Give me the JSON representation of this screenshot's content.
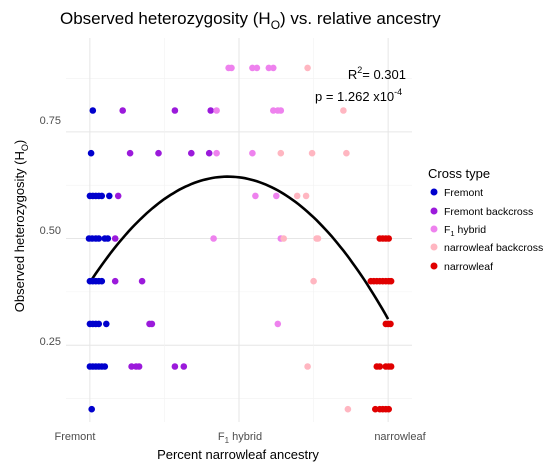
{
  "chart_data": {
    "type": "scatter",
    "title_main": "Observed heterozygosity (H",
    "title_sub": "O",
    "title_end": ") vs. relative ancestry",
    "xlabel": "Percent narrowleaf ancestry",
    "ylabel_main": "Observed heterozygosity (H",
    "ylabel_sub": "O",
    "ylabel_end": ")",
    "x_ticks": [
      {
        "value": 0,
        "label": "Fremont"
      },
      {
        "value": 50,
        "label_main": "F",
        "label_sub": "1",
        "label_end": " hybrid"
      },
      {
        "value": 100,
        "label": "narrowleaf"
      }
    ],
    "xlim": [
      -8,
      108
    ],
    "ylim": [
      0.07,
      0.97
    ],
    "y_ticks": [
      0.25,
      0.5,
      0.75
    ],
    "y_tick_labels": [
      "0.25",
      "0.50",
      "0.75"
    ],
    "grid": true,
    "annotations": {
      "r2_main": "R",
      "r2_sup": "2",
      "r2_value": "= 0.301",
      "p_main": "p = 1.262 x10",
      "p_sup": "-4"
    },
    "legend": {
      "title": "Cross type",
      "placement": "right",
      "entries": [
        {
          "label": "Fremont",
          "color": "#0000CD"
        },
        {
          "label": "Fremont backcross",
          "color": "#9B1ADB"
        },
        {
          "label_main": "F",
          "label_sub": "1",
          "label_end": " hybrid",
          "color": "#EE82EE"
        },
        {
          "label": "narrowleaf backcross",
          "color": "#FFB6C1"
        },
        {
          "label": "narrowleaf",
          "color": "#E00000"
        }
      ]
    },
    "series": [
      {
        "name": "Fremont",
        "color": "#0000CD",
        "points": [
          [
            1.0,
            0.8
          ],
          [
            0.4,
            0.7
          ],
          [
            0,
            0.6
          ],
          [
            1,
            0.6
          ],
          [
            2,
            0.6
          ],
          [
            3,
            0.6
          ],
          [
            4,
            0.6
          ],
          [
            6.5,
            0.6
          ],
          [
            -0.3,
            0.5
          ],
          [
            0.8,
            0.5
          ],
          [
            2,
            0.5
          ],
          [
            3,
            0.5
          ],
          [
            5,
            0.5
          ],
          [
            6,
            0.5
          ],
          [
            0,
            0.4
          ],
          [
            1,
            0.4
          ],
          [
            2,
            0.4
          ],
          [
            3,
            0.4
          ],
          [
            4,
            0.4
          ],
          [
            0,
            0.3
          ],
          [
            1,
            0.3
          ],
          [
            2,
            0.3
          ],
          [
            3,
            0.3
          ],
          [
            5.5,
            0.3
          ],
          [
            0,
            0.2
          ],
          [
            1,
            0.2
          ],
          [
            2,
            0.2
          ],
          [
            3,
            0.2
          ],
          [
            4,
            0.2
          ],
          [
            5,
            0.2
          ],
          [
            0.6,
            0.1
          ]
        ]
      },
      {
        "name": "Fremont backcross",
        "color": "#9B1ADB",
        "points": [
          [
            11,
            0.8
          ],
          [
            28.5,
            0.8
          ],
          [
            40.5,
            0.8
          ],
          [
            13.5,
            0.7
          ],
          [
            23,
            0.7
          ],
          [
            34,
            0.7
          ],
          [
            40,
            0.7
          ],
          [
            9.5,
            0.6
          ],
          [
            8.5,
            0.5
          ],
          [
            8.5,
            0.4
          ],
          [
            17.5,
            0.4
          ],
          [
            20,
            0.3
          ],
          [
            20.8,
            0.3
          ],
          [
            14,
            0.2
          ],
          [
            15.5,
            0.2
          ],
          [
            16.5,
            0.2
          ],
          [
            28.5,
            0.2
          ],
          [
            31.5,
            0.2
          ]
        ]
      },
      {
        "name": "F1 hybrid",
        "color": "#EE82EE",
        "points": [
          [
            46.5,
            0.9
          ],
          [
            47.5,
            0.9
          ],
          [
            54.5,
            0.9
          ],
          [
            56,
            0.9
          ],
          [
            60,
            0.9
          ],
          [
            61.5,
            0.9
          ],
          [
            42.5,
            0.8
          ],
          [
            61.5,
            0.8
          ],
          [
            63,
            0.8
          ],
          [
            64,
            0.8
          ],
          [
            42.5,
            0.7
          ],
          [
            54.5,
            0.7
          ],
          [
            55.5,
            0.6
          ],
          [
            62.5,
            0.6
          ],
          [
            41.5,
            0.5
          ],
          [
            64,
            0.5
          ],
          [
            63,
            0.3
          ]
        ]
      },
      {
        "name": "narrowleaf backcross",
        "color": "#FFB6C1",
        "points": [
          [
            73,
            0.9
          ],
          [
            85,
            0.8
          ],
          [
            86,
            0.7
          ],
          [
            64,
            0.7
          ],
          [
            74.5,
            0.7
          ],
          [
            69.5,
            0.6
          ],
          [
            72.5,
            0.6
          ],
          [
            65,
            0.5
          ],
          [
            76,
            0.5
          ],
          [
            76.5,
            0.5
          ],
          [
            75,
            0.4
          ],
          [
            73,
            0.2
          ],
          [
            86.5,
            0.1
          ]
        ]
      },
      {
        "name": "narrowleaf",
        "color": "#E00000",
        "points": [
          [
            97.2,
            0.5
          ],
          [
            98.2,
            0.5
          ],
          [
            99.2,
            0.5
          ],
          [
            100.2,
            0.5
          ],
          [
            94.2,
            0.4
          ],
          [
            95.2,
            0.4
          ],
          [
            96.2,
            0.4
          ],
          [
            97.2,
            0.4
          ],
          [
            98.2,
            0.4
          ],
          [
            99.2,
            0.4
          ],
          [
            100.2,
            0.4
          ],
          [
            101,
            0.4
          ],
          [
            99.2,
            0.3
          ],
          [
            100,
            0.3
          ],
          [
            100.8,
            0.3
          ],
          [
            96.2,
            0.2
          ],
          [
            97.2,
            0.2
          ],
          [
            99.2,
            0.2
          ],
          [
            100.2,
            0.2
          ],
          [
            101,
            0.2
          ],
          [
            95.7,
            0.1
          ],
          [
            97.2,
            0.1
          ],
          [
            98.2,
            0.1
          ],
          [
            99.2,
            0.1
          ],
          [
            100.2,
            0.1
          ]
        ]
      }
    ],
    "fit_curve": {
      "type": "quadratic",
      "points": [
        [
          0,
          0.402
        ],
        [
          20,
          0.559
        ],
        [
          40,
          0.634
        ],
        [
          50,
          0.645
        ],
        [
          60,
          0.626
        ],
        [
          80,
          0.523
        ],
        [
          100,
          0.305
        ]
      ]
    }
  }
}
